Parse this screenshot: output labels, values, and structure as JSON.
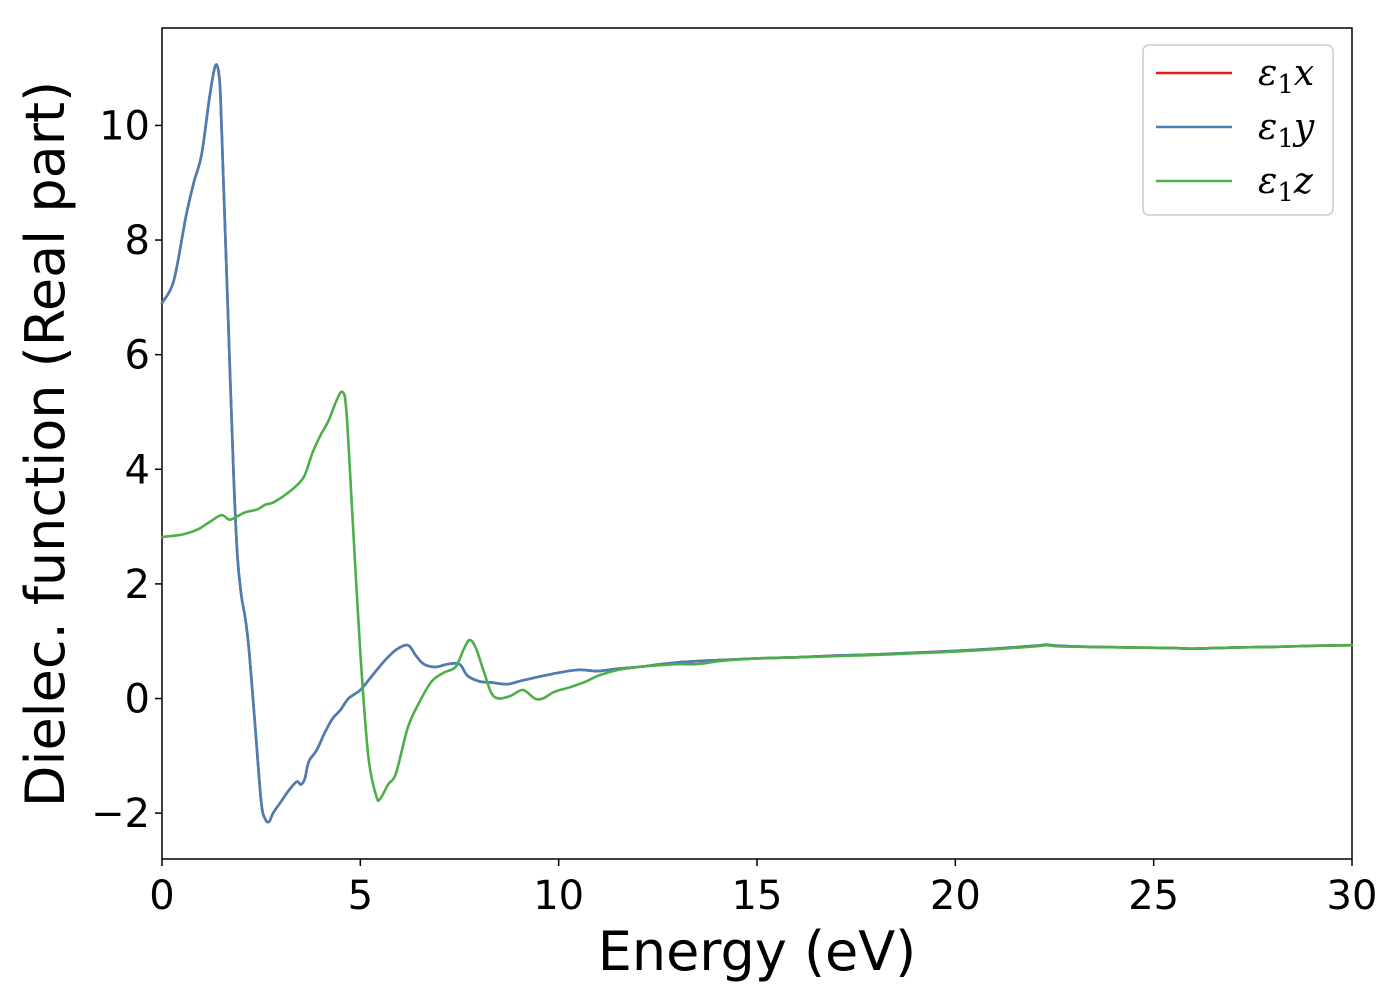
{
  "chart_data": {
    "type": "line",
    "title": "",
    "xlabel": "Energy (eV)",
    "ylabel": "Dielec. function (Real part)",
    "xlim": [
      0,
      30
    ],
    "ylim": [
      -2.8,
      11.7
    ],
    "x_ticks": [
      "0",
      "5",
      "10",
      "15",
      "20",
      "25",
      "30"
    ],
    "y_ticks": [
      "−2",
      "0",
      "2",
      "4",
      "6",
      "8",
      "10"
    ],
    "x_tick_values": [
      0,
      5,
      10,
      15,
      20,
      25,
      30
    ],
    "y_tick_values": [
      -2,
      0,
      2,
      4,
      6,
      8,
      10
    ],
    "grid": false,
    "legend_position": "top-right",
    "series": [
      {
        "name": "ε₁x",
        "label_base": "ε",
        "label_sub": "1",
        "label_var": "x",
        "color": "#e41a1c",
        "x": [
          0,
          0.3,
          0.6,
          0.8,
          1.0,
          1.2,
          1.35,
          1.45,
          1.5,
          1.55,
          1.65,
          1.8,
          1.9,
          2.0,
          2.1,
          2.2,
          2.35,
          2.5,
          2.6,
          2.7,
          2.8,
          3.0,
          3.2,
          3.4,
          3.5,
          3.6,
          3.7,
          3.9,
          4.1,
          4.3,
          4.5,
          4.7,
          5.0,
          5.3,
          5.6,
          5.9,
          6.2,
          6.4,
          6.6,
          6.9,
          7.2,
          7.5,
          7.7,
          8.0,
          8.3,
          8.7,
          9.0,
          9.5,
          10.0,
          10.5,
          11.0,
          11.5,
          12.0,
          13.0,
          14.0,
          15.0,
          16.0,
          17.0,
          18.0,
          19.0,
          20.0,
          21.0,
          22.0,
          22.3,
          22.6,
          23.5,
          24.5,
          25.5,
          26.0,
          27.0,
          28.0,
          29.0,
          30.0
        ],
        "y": [
          6.9,
          7.3,
          8.4,
          9.0,
          9.5,
          10.5,
          11.05,
          10.8,
          10.0,
          9.0,
          7.0,
          4.0,
          2.5,
          1.8,
          1.4,
          0.8,
          -0.5,
          -1.8,
          -2.1,
          -2.15,
          -2.0,
          -1.8,
          -1.6,
          -1.45,
          -1.5,
          -1.4,
          -1.1,
          -0.9,
          -0.6,
          -0.35,
          -0.2,
          0.0,
          0.15,
          0.4,
          0.65,
          0.85,
          0.93,
          0.75,
          0.6,
          0.55,
          0.6,
          0.6,
          0.4,
          0.3,
          0.28,
          0.25,
          0.3,
          0.38,
          0.45,
          0.5,
          0.48,
          0.52,
          0.55,
          0.63,
          0.67,
          0.7,
          0.72,
          0.75,
          0.77,
          0.8,
          0.83,
          0.87,
          0.92,
          0.94,
          0.92,
          0.9,
          0.89,
          0.88,
          0.87,
          0.89,
          0.9,
          0.92,
          0.93
        ]
      },
      {
        "name": "ε₁y",
        "label_base": "ε",
        "label_sub": "1",
        "label_var": "y",
        "color": "#4a7fb5",
        "x": [
          0,
          0.3,
          0.6,
          0.8,
          1.0,
          1.2,
          1.35,
          1.45,
          1.5,
          1.55,
          1.65,
          1.8,
          1.9,
          2.0,
          2.1,
          2.2,
          2.35,
          2.5,
          2.6,
          2.7,
          2.8,
          3.0,
          3.2,
          3.4,
          3.5,
          3.6,
          3.7,
          3.9,
          4.1,
          4.3,
          4.5,
          4.7,
          5.0,
          5.3,
          5.6,
          5.9,
          6.2,
          6.4,
          6.6,
          6.9,
          7.2,
          7.5,
          7.7,
          8.0,
          8.3,
          8.7,
          9.0,
          9.5,
          10.0,
          10.5,
          11.0,
          11.5,
          12.0,
          13.0,
          14.0,
          15.0,
          16.0,
          17.0,
          18.0,
          19.0,
          20.0,
          21.0,
          22.0,
          22.3,
          22.6,
          23.5,
          24.5,
          25.5,
          26.0,
          27.0,
          28.0,
          29.0,
          30.0
        ],
        "y": [
          6.9,
          7.3,
          8.4,
          9.0,
          9.5,
          10.5,
          11.05,
          10.8,
          10.0,
          9.0,
          7.0,
          4.0,
          2.5,
          1.8,
          1.4,
          0.8,
          -0.5,
          -1.8,
          -2.1,
          -2.15,
          -2.0,
          -1.8,
          -1.6,
          -1.45,
          -1.5,
          -1.4,
          -1.1,
          -0.9,
          -0.6,
          -0.35,
          -0.2,
          0.0,
          0.15,
          0.4,
          0.65,
          0.85,
          0.93,
          0.75,
          0.6,
          0.55,
          0.6,
          0.6,
          0.4,
          0.3,
          0.28,
          0.25,
          0.3,
          0.38,
          0.45,
          0.5,
          0.48,
          0.52,
          0.55,
          0.63,
          0.67,
          0.7,
          0.72,
          0.75,
          0.77,
          0.8,
          0.83,
          0.87,
          0.92,
          0.94,
          0.92,
          0.9,
          0.89,
          0.88,
          0.87,
          0.89,
          0.9,
          0.92,
          0.93
        ]
      },
      {
        "name": "ε₁z",
        "label_base": "ε",
        "label_sub": "1",
        "label_var": "z",
        "color": "#4daf4a",
        "x": [
          0,
          0.5,
          0.9,
          1.2,
          1.5,
          1.7,
          1.9,
          2.1,
          2.4,
          2.6,
          2.8,
          3.1,
          3.4,
          3.6,
          3.8,
          4.0,
          4.2,
          4.4,
          4.55,
          4.65,
          4.8,
          5.0,
          5.2,
          5.4,
          5.5,
          5.7,
          5.9,
          6.2,
          6.5,
          6.8,
          7.1,
          7.4,
          7.6,
          7.75,
          7.9,
          8.1,
          8.3,
          8.5,
          8.8,
          9.1,
          9.4,
          9.6,
          9.9,
          10.3,
          10.7,
          11.0,
          11.5,
          12.0,
          12.5,
          13.0,
          13.5,
          14.0,
          14.5,
          15.0,
          15.5,
          16.0,
          17.0,
          18.0,
          19.0,
          20.0,
          21.0,
          22.0,
          22.3,
          22.6,
          23.5,
          24.5,
          25.5,
          26.0,
          27.0,
          28.0,
          29.0,
          30.0
        ],
        "y": [
          2.82,
          2.86,
          2.95,
          3.08,
          3.2,
          3.12,
          3.18,
          3.25,
          3.3,
          3.38,
          3.42,
          3.55,
          3.72,
          3.9,
          4.3,
          4.6,
          4.85,
          5.2,
          5.35,
          5.0,
          3.2,
          0.8,
          -1.0,
          -1.7,
          -1.75,
          -1.5,
          -1.3,
          -0.5,
          -0.05,
          0.3,
          0.45,
          0.55,
          0.85,
          1.02,
          0.9,
          0.5,
          0.1,
          0.0,
          0.05,
          0.15,
          0.0,
          0.0,
          0.12,
          0.2,
          0.3,
          0.4,
          0.5,
          0.55,
          0.58,
          0.6,
          0.6,
          0.65,
          0.68,
          0.7,
          0.71,
          0.72,
          0.74,
          0.76,
          0.79,
          0.82,
          0.86,
          0.91,
          0.93,
          0.91,
          0.9,
          0.89,
          0.88,
          0.87,
          0.89,
          0.9,
          0.92,
          0.93
        ]
      }
    ]
  }
}
